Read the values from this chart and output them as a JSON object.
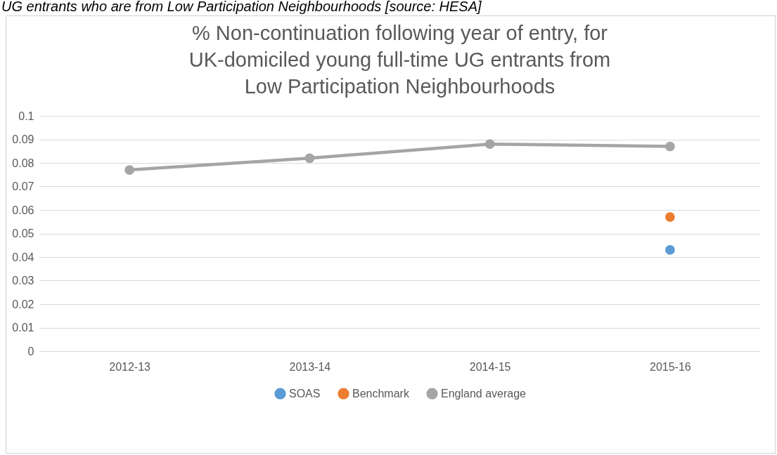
{
  "chart_data": {
    "type": "line",
    "title": "% Non-continuation following year of entry, for UK-domiciled young full-time UG entrants from Low Participation Neighbourhoods",
    "annotations": [
      "UG entrants who are from Low Participation Neighbourhoods [source: HESA]"
    ],
    "categories": [
      "2012-13",
      "2013-14",
      "2014-15",
      "2015-16"
    ],
    "series": [
      {
        "name": "SOAS",
        "color": "#5b9bd5",
        "values": [
          null,
          null,
          null,
          0.043
        ]
      },
      {
        "name": "Benchmark",
        "color": "#ed7d31",
        "values": [
          null,
          null,
          null,
          0.057
        ]
      },
      {
        "name": "England average",
        "color": "#a5a5a5",
        "values": [
          0.077,
          0.082,
          0.088,
          0.087
        ]
      }
    ],
    "ylim": [
      0,
      0.1
    ],
    "yticks": [
      0,
      0.01,
      0.02,
      0.03,
      0.04,
      0.05,
      0.06,
      0.07,
      0.08,
      0.09,
      0.1
    ],
    "grid": "y",
    "legend": "bottom",
    "marker": "circle",
    "line_style": "solid"
  }
}
